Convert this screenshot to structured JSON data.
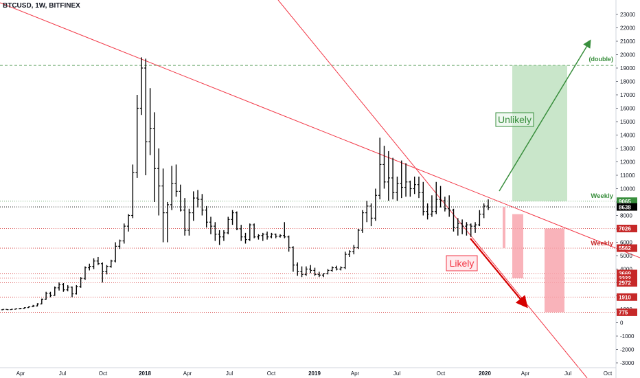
{
  "header": {
    "symbol": "BTCUSD, 1W, BITFINEX"
  },
  "colors": {
    "candle": "#000000",
    "trendline": "#f23645",
    "support": "#d32f2f",
    "weekly_green": "#388e3c",
    "green_zone": "#a5d6a7",
    "red_zone": "#f8a6ae",
    "dark_arrow": "#d50000",
    "axis_text": "#131722"
  },
  "chart_data": {
    "type": "bar",
    "title": "BTCUSD, 1W, BITFINEX",
    "ylim": [
      -3000,
      23500
    ],
    "y_ticks": [
      -3000,
      -2000,
      -1000,
      0,
      1000,
      2000,
      3000,
      4000,
      5000,
      6000,
      7000,
      8000,
      9000,
      10000,
      11000,
      12000,
      13000,
      14000,
      15000,
      16000,
      17000,
      18000,
      19000,
      20000,
      21000,
      22000,
      23000
    ],
    "x_ticks": [
      "Apr",
      "Jul",
      "Oct",
      "2018",
      "Apr",
      "Jul",
      "Oct",
      "2019",
      "Apr",
      "Jul",
      "Oct",
      "2020",
      "Apr",
      "Jul",
      "Oct"
    ],
    "ohlc_weekly": [
      [
        960,
        1010,
        930,
        990
      ],
      [
        990,
        1010,
        940,
        970
      ],
      [
        970,
        1020,
        950,
        1000
      ],
      [
        1000,
        1060,
        980,
        1040
      ],
      [
        1040,
        1100,
        1000,
        1070
      ],
      [
        1070,
        1150,
        1040,
        1120
      ],
      [
        1120,
        1220,
        1100,
        1200
      ],
      [
        1200,
        1320,
        1160,
        1250
      ],
      [
        1250,
        1450,
        1220,
        1400
      ],
      [
        1400,
        1790,
        1380,
        1750
      ],
      [
        1750,
        2300,
        1720,
        2200
      ],
      [
        2200,
        2300,
        1900,
        2050
      ],
      [
        2050,
        2700,
        2000,
        2600
      ],
      [
        2600,
        3000,
        2400,
        2850
      ],
      [
        2850,
        2950,
        2300,
        2450
      ],
      [
        2450,
        2800,
        2350,
        2650
      ],
      [
        2650,
        2700,
        1900,
        2150
      ],
      [
        2150,
        2800,
        2100,
        2700
      ],
      [
        2700,
        3400,
        2600,
        3300
      ],
      [
        3300,
        4200,
        3200,
        4100
      ],
      [
        4100,
        4400,
        3900,
        4200
      ],
      [
        4200,
        4800,
        4000,
        4600
      ],
      [
        4600,
        4900,
        4300,
        4400
      ],
      [
        4400,
        4500,
        3000,
        3800
      ],
      [
        3800,
        4300,
        3600,
        4200
      ],
      [
        4200,
        4700,
        4100,
        4600
      ],
      [
        4600,
        6000,
        4500,
        5700
      ],
      [
        5700,
        6200,
        5500,
        6100
      ],
      [
        6100,
        7400,
        5900,
        7200
      ],
      [
        7200,
        8100,
        6800,
        8000
      ],
      [
        8000,
        11800,
        7800,
        11200
      ],
      [
        11200,
        17000,
        10800,
        16000
      ],
      [
        16000,
        19800,
        15500,
        19000
      ],
      [
        19000,
        19700,
        11000,
        13500
      ],
      [
        13500,
        17500,
        12500,
        14500
      ],
      [
        14500,
        15700,
        9000,
        11500
      ],
      [
        11500,
        13000,
        8000,
        10200
      ],
      [
        10200,
        11500,
        6000,
        8200
      ],
      [
        8200,
        9000,
        6000,
        8800
      ],
      [
        8800,
        11700,
        8400,
        10400
      ],
      [
        10400,
        11800,
        9400,
        9800
      ],
      [
        9800,
        10300,
        8300,
        8400
      ],
      [
        8400,
        9300,
        6500,
        6900
      ],
      [
        6900,
        8500,
        6500,
        8200
      ],
      [
        8200,
        9800,
        7600,
        9300
      ],
      [
        9300,
        9900,
        8600,
        9200
      ],
      [
        9200,
        9600,
        8000,
        8400
      ],
      [
        8400,
        8700,
        7100,
        7500
      ],
      [
        7500,
        7900,
        6600,
        7200
      ],
      [
        7200,
        7500,
        6100,
        6600
      ],
      [
        6600,
        6900,
        5800,
        6400
      ],
      [
        6400,
        6900,
        6100,
        6700
      ],
      [
        6700,
        7900,
        6600,
        7700
      ],
      [
        7700,
        8400,
        7300,
        8200
      ],
      [
        8200,
        8300,
        6900,
        7000
      ],
      [
        7000,
        7300,
        6100,
        6400
      ],
      [
        6400,
        6700,
        5900,
        6200
      ],
      [
        6200,
        7400,
        6100,
        7300
      ],
      [
        7300,
        7400,
        6300,
        6400
      ],
      [
        6400,
        6600,
        6200,
        6500
      ],
      [
        6500,
        6700,
        6100,
        6600
      ],
      [
        6600,
        6800,
        6200,
        6400
      ],
      [
        6400,
        6700,
        6300,
        6600
      ],
      [
        6600,
        6650,
        6300,
        6450
      ],
      [
        6450,
        6600,
        6350,
        6500
      ],
      [
        6500,
        7500,
        6300,
        6400
      ],
      [
        6400,
        6500,
        5300,
        5600
      ],
      [
        5600,
        5700,
        3800,
        4300
      ],
      [
        4300,
        4500,
        3500,
        3800
      ],
      [
        3800,
        4200,
        3400,
        3600
      ],
      [
        3600,
        4200,
        3500,
        4000
      ],
      [
        4000,
        4300,
        3700,
        3900
      ],
      [
        3900,
        4100,
        3500,
        3600
      ],
      [
        3600,
        3800,
        3400,
        3550
      ],
      [
        3550,
        3700,
        3400,
        3650
      ],
      [
        3650,
        4000,
        3600,
        3900
      ],
      [
        3900,
        4200,
        3800,
        4100
      ],
      [
        4100,
        4250,
        3900,
        4000
      ],
      [
        4000,
        4200,
        3900,
        4100
      ],
      [
        4100,
        5300,
        4000,
        5100
      ],
      [
        5100,
        5400,
        4900,
        5300
      ],
      [
        5300,
        5800,
        5100,
        5600
      ],
      [
        5600,
        7000,
        5500,
        6900
      ],
      [
        6900,
        8400,
        6700,
        8200
      ],
      [
        8200,
        9100,
        7500,
        8700
      ],
      [
        8700,
        8900,
        7200,
        7800
      ],
      [
        7800,
        10000,
        7600,
        9500
      ],
      [
        9500,
        13800,
        9200,
        11800
      ],
      [
        11800,
        13200,
        10000,
        10500
      ],
      [
        10500,
        12800,
        9100,
        10800
      ],
      [
        10800,
        12300,
        9200,
        9700
      ],
      [
        9700,
        10900,
        9100,
        10400
      ],
      [
        10400,
        12100,
        9300,
        10100
      ],
      [
        10100,
        11900,
        9400,
        10500
      ],
      [
        10500,
        10600,
        9400,
        10000
      ],
      [
        10000,
        10900,
        9600,
        10300
      ],
      [
        10300,
        10900,
        9300,
        9700
      ],
      [
        9700,
        10500,
        8000,
        8300
      ],
      [
        8300,
        8900,
        7700,
        8100
      ],
      [
        8100,
        9500,
        7900,
        8300
      ],
      [
        8300,
        10500,
        8100,
        9200
      ],
      [
        9200,
        10200,
        8600,
        9100
      ],
      [
        9100,
        9400,
        8300,
        8500
      ],
      [
        8500,
        9500,
        7900,
        8400
      ],
      [
        8400,
        8500,
        6800,
        7100
      ],
      [
        7100,
        7800,
        6500,
        7400
      ],
      [
        7400,
        7700,
        6600,
        7200
      ],
      [
        7200,
        7500,
        6500,
        7300
      ],
      [
        7300,
        7400,
        6400,
        7200
      ],
      [
        7200,
        7500,
        6700,
        7300
      ],
      [
        7300,
        8400,
        7200,
        8100
      ],
      [
        8100,
        8900,
        7800,
        8700
      ],
      [
        8700,
        9200,
        8400,
        8600
      ]
    ],
    "trend_lines": [
      {
        "name": "descending",
        "from": [
          4000,
          19890
        ],
        "to": [
          932,
          5000
        ]
      },
      {
        "name": "steep",
        "from": [
          405,
          23500
        ],
        "to": [
          855,
          -3000
        ]
      }
    ],
    "horizontal_levels": [
      {
        "value": 19200,
        "label": "(double)",
        "style": "dashed",
        "color": "green"
      },
      {
        "value": 9065,
        "label": "Weekly",
        "style": "dotted",
        "color": "green"
      },
      {
        "value": 8638,
        "style": "dotted",
        "color": "black"
      },
      {
        "value": 7026,
        "style": "dotted",
        "color": "red"
      },
      {
        "value": 5562,
        "style": "dotted",
        "color": "red"
      },
      {
        "value": 3669,
        "style": "dotted",
        "color": "red"
      },
      {
        "value": 3322,
        "style": "dotted",
        "color": "red"
      },
      {
        "value": 2972,
        "style": "dotted",
        "color": "red"
      },
      {
        "value": 1910,
        "style": "dotted",
        "color": "red"
      },
      {
        "value": 775,
        "style": "dotted",
        "color": "red"
      }
    ],
    "price_labels": [
      {
        "value": 9065,
        "text": "9065",
        "color": "#388e3c"
      },
      {
        "value": 8638,
        "text": "8638",
        "color": "#000000"
      },
      {
        "value": 7026,
        "text": "7026",
        "color": "#c62828"
      },
      {
        "value": 5562,
        "text": "5562",
        "color": "#c62828"
      },
      {
        "value": 3669,
        "text": "3669",
        "color": "#c62828"
      },
      {
        "value": 3322,
        "text": "3322",
        "color": "#c62828"
      },
      {
        "value": 2972,
        "text": "2972",
        "color": "#c62828"
      },
      {
        "value": 1910,
        "text": "1910",
        "color": "#c62828"
      },
      {
        "value": 775,
        "text": "775",
        "color": "#c62828"
      }
    ],
    "annotations": {
      "unlikely": "Unlikely",
      "likely": "Likely",
      "weekly_top": "Weekly",
      "weekly_bottom": "Weekly",
      "double": "(double)"
    },
    "zones": [
      {
        "name": "green-target",
        "y_from": 9065,
        "y_to": 19200,
        "color": "green"
      },
      {
        "name": "red-small",
        "y_from": 5562,
        "y_to": 8638,
        "color": "red"
      },
      {
        "name": "red-mid",
        "y_from": 3322,
        "y_to": 8100,
        "color": "red"
      },
      {
        "name": "red-large",
        "y_from": 775,
        "y_to": 7026,
        "color": "red"
      }
    ]
  }
}
